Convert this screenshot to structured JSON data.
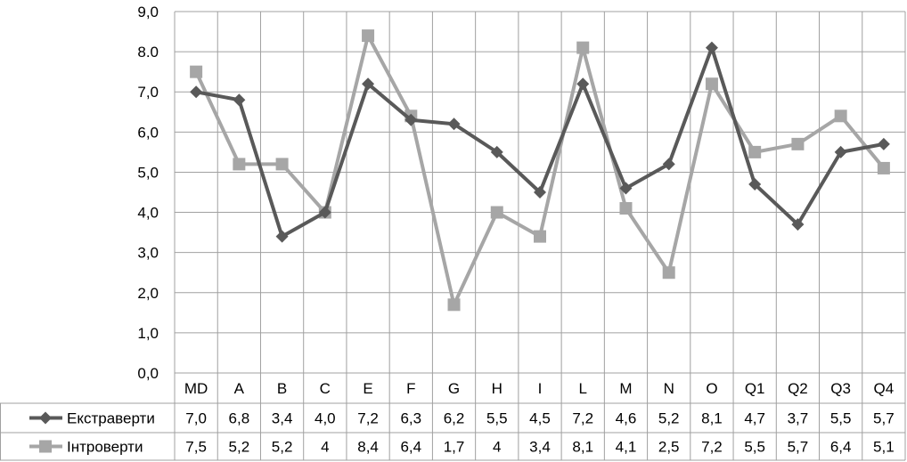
{
  "chart_data": {
    "type": "line",
    "title": "",
    "xlabel": "",
    "ylabel": "",
    "ylim": [
      0,
      9
    ],
    "ytick_labels": [
      "0,0",
      "1,0",
      "2,0",
      "3,0",
      "4,0",
      "5,0",
      "6,0",
      "7,0",
      "8.0",
      "9,0"
    ],
    "grid": true,
    "legend": "data-table",
    "categories": [
      "MD",
      "A",
      "B",
      "C",
      "E",
      "F",
      "G",
      "H",
      "I",
      "L",
      "M",
      "N",
      "O",
      "Q1",
      "Q2",
      "Q3",
      "Q4"
    ],
    "series": [
      {
        "name": "Екстраверти",
        "color": "#595959",
        "marker": "diamond",
        "values": [
          7.0,
          6.8,
          3.4,
          4.0,
          7.2,
          6.3,
          6.2,
          5.5,
          4.5,
          7.2,
          4.6,
          5.2,
          8.1,
          4.7,
          3.7,
          5.5,
          5.7
        ],
        "labels": [
          "7,0",
          "6,8",
          "3,4",
          "4,0",
          "7,2",
          "6,3",
          "6,2",
          "5,5",
          "4,5",
          "7,2",
          "4,6",
          "5,2",
          "8,1",
          "4,7",
          "3,7",
          "5,5",
          "5,7"
        ]
      },
      {
        "name": "Інтроверти",
        "color": "#a6a6a6",
        "marker": "square",
        "values": [
          7.5,
          5.2,
          5.2,
          4.0,
          8.4,
          6.4,
          1.7,
          4.0,
          3.4,
          8.1,
          4.1,
          2.5,
          7.2,
          5.5,
          5.7,
          6.4,
          5.1
        ],
        "labels": [
          "7,5",
          "5,2",
          "5,2",
          "4",
          "8,4",
          "6,4",
          "1,7",
          "4",
          "3,4",
          "8,1",
          "4,1",
          "2,5",
          "7,2",
          "5,5",
          "5,7",
          "6,4",
          "5,1"
        ]
      }
    ]
  }
}
